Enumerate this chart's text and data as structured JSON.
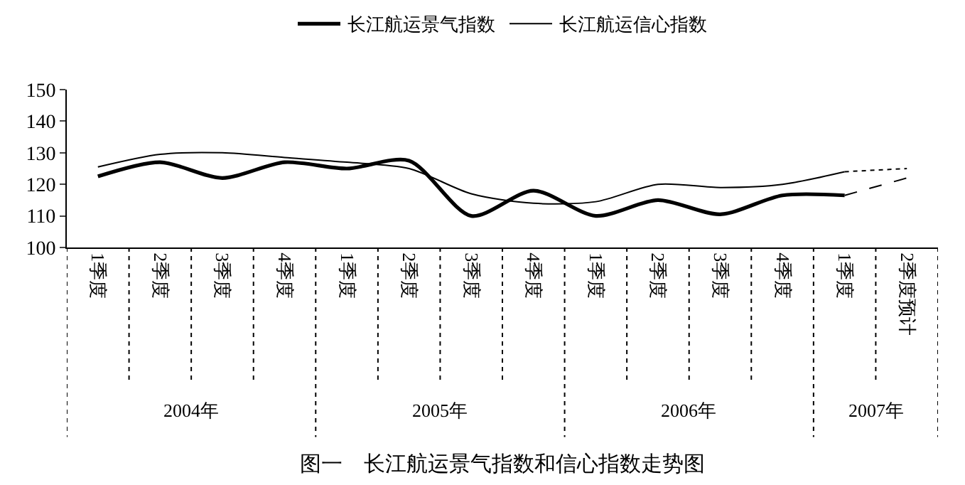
{
  "chart_data": {
    "type": "line",
    "title": "图一　长江航运景气指数和信心指数走势图",
    "categories": [
      "1季度",
      "2季度",
      "3季度",
      "4季度",
      "1季度",
      "2季度",
      "3季度",
      "4季度",
      "1季度",
      "2季度",
      "3季度",
      "4季度",
      "1季度",
      "2季度预计"
    ],
    "series": [
      {
        "name": "长江航运景气指数",
        "color": "#000000",
        "line_style": "solid",
        "values": [
          122.5,
          127,
          122,
          127,
          125,
          127.5,
          110,
          118,
          110,
          115,
          110.5,
          116.5,
          116.5,
          null
        ]
      },
      {
        "name": "长江航运信心指数",
        "color": "#000000",
        "line_style": "solid",
        "values": [
          125.5,
          129.5,
          130,
          128.5,
          127,
          125,
          117,
          114,
          114.5,
          120,
          119,
          120,
          124,
          null
        ]
      },
      {
        "color": "#000000",
        "line_style": "dashed",
        "values": [
          null,
          null,
          null,
          null,
          null,
          null,
          null,
          null,
          null,
          null,
          null,
          null,
          116.5,
          122
        ]
      },
      {
        "color": "#000000",
        "line_style": "dotted",
        "values": [
          null,
          null,
          null,
          null,
          null,
          null,
          null,
          null,
          null,
          null,
          null,
          null,
          124,
          125
        ]
      }
    ],
    "annotations": [
      "2004年",
      "2005年",
      "2006年",
      "2007年"
    ],
    "ylim": [
      100,
      150
    ],
    "yticks": [
      100,
      110,
      120,
      130,
      140,
      150
    ],
    "grid": false,
    "legend": "top",
    "marker": "none"
  }
}
